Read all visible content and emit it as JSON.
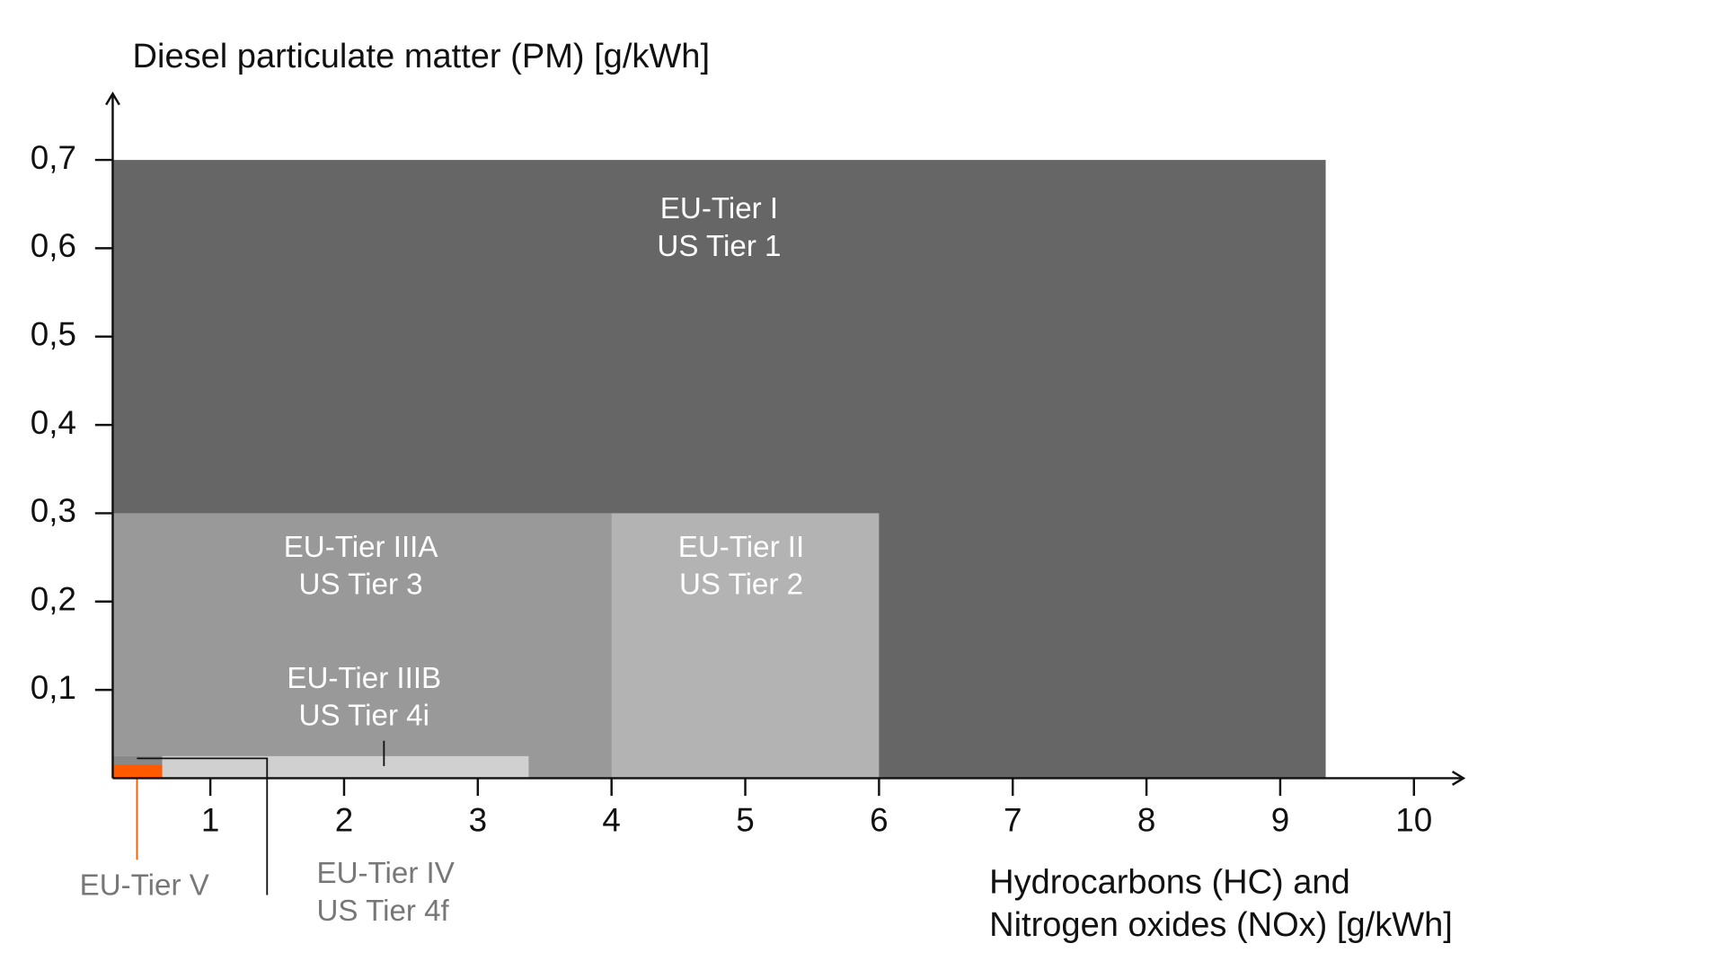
{
  "chart_data": {
    "type": "nested-rect",
    "y_label": "Diesel particulate matter (PM) [g/kWh]",
    "x_label": [
      "Hydrocarbons (HC) and",
      "Nitrogen oxides (NOx) [g/kWh]"
    ],
    "xlim": [
      0.27,
      10.37
    ],
    "ylim": [
      0,
      0.775
    ],
    "xticks": [
      1,
      2,
      3,
      4,
      5,
      6,
      7,
      8,
      9,
      10
    ],
    "yticks": [
      {
        "value": 0.1,
        "label": "0,1"
      },
      {
        "value": 0.2,
        "label": "0,2"
      },
      {
        "value": 0.3,
        "label": "0,3"
      },
      {
        "value": 0.4,
        "label": "0,4"
      },
      {
        "value": 0.5,
        "label": "0,5"
      },
      {
        "value": 0.6,
        "label": "0,6"
      },
      {
        "value": 0.7,
        "label": "0,7"
      }
    ],
    "series": [
      {
        "labels": [
          "EU-Tier I",
          "US Tier 1"
        ],
        "color": "#666666",
        "x": 9.34,
        "y": 0.7
      },
      {
        "labels": [
          "EU-Tier II",
          "US Tier 2"
        ],
        "color": "#b3b3b3",
        "x": 6,
        "y": 0.3
      },
      {
        "labels": [
          "EU-Tier IIIA",
          "US Tier 3"
        ],
        "color": "#999999",
        "x": 4,
        "y": 0.3
      },
      {
        "labels": [
          "EU-Tier IIIB",
          "US Tier 4i"
        ],
        "color": "#d0d0d0",
        "x": 3.38,
        "y": 0.025
      },
      {
        "labels": [
          "EU-Tier IV",
          "US Tier 4f"
        ],
        "color": "#888888",
        "x": 0.64,
        "y": 0.025
      },
      {
        "labels": [
          "EU-Tier V"
        ],
        "color": "#ff5a00",
        "x": 0.64,
        "y": 0.015
      }
    ]
  }
}
